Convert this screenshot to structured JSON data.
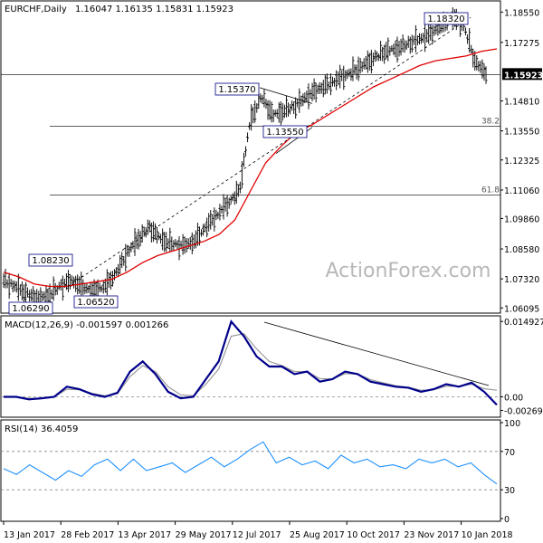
{
  "header": {
    "symbol": "EURCHF,Daily",
    "ohlc": "1.16047 1.16135 1.15831 1.15923"
  },
  "watermark": "ActionForex.com",
  "colors": {
    "price": "#111111",
    "ma": "#e00000",
    "macd": "#00008b",
    "signal": "#9a9a9a",
    "rsi": "#1e90ff",
    "grid": "#000000"
  },
  "price_panel": {
    "y_ticks": [
      "1.18550",
      "1.17275",
      "1.15923",
      "1.14810",
      "1.13550",
      "1.12325",
      "1.11060",
      "1.09860",
      "1.08580",
      "1.07320",
      "1.06095"
    ],
    "current_price_label": "1.15923",
    "annotations": [
      {
        "label": "1.18320"
      },
      {
        "label": "1.15370"
      },
      {
        "label": "1.13550"
      },
      {
        "label": "1.08230"
      },
      {
        "label": "1.06520"
      },
      {
        "label": "1.06290"
      }
    ],
    "fib_levels": [
      {
        "label": "38.2",
        "value": 1.1375
      },
      {
        "label": "61.8",
        "value": 1.1085
      }
    ]
  },
  "macd_panel": {
    "label": "MACD(12,26,9) -0.001597 0.001266",
    "y_ticks": [
      "0.014927",
      "0.00",
      "-0.002696"
    ]
  },
  "rsi_panel": {
    "label": "RSI(14) 36.4059",
    "y_ticks": [
      "100",
      "70",
      "30",
      "0"
    ]
  },
  "x_axis": {
    "labels": [
      "13 Jan 2017",
      "28 Feb 2017",
      "13 Apr 2017",
      "29 May 2017",
      "12 Jul 2017",
      "25 Aug 2017",
      "10 Oct 2017",
      "23 Nov 2017",
      "10 Jan 2018"
    ]
  },
  "chart_data": [
    {
      "type": "candlestick",
      "title": "EURCHF,Daily",
      "ylim": [
        1.0603,
        1.1883
      ],
      "x": [
        "13 Jan 2017",
        "28 Feb 2017",
        "13 Apr 2017",
        "29 May 2017",
        "12 Jul 2017",
        "25 Aug 2017",
        "10 Oct 2017",
        "23 Nov 2017",
        "10 Jan 2018"
      ],
      "close_path": [
        1.0725,
        1.07,
        1.0672,
        1.065,
        1.0663,
        1.07,
        1.0725,
        1.07,
        1.068,
        1.07,
        1.0755,
        1.084,
        1.09,
        1.095,
        1.09,
        1.088,
        1.087,
        1.089,
        1.095,
        1.1,
        1.105,
        1.11,
        1.14,
        1.15,
        1.142,
        1.144,
        1.146,
        1.15,
        1.153,
        1.155,
        1.158,
        1.16,
        1.163,
        1.166,
        1.169,
        1.17,
        1.172,
        1.174,
        1.176,
        1.18,
        1.1832,
        1.18,
        1.165,
        1.1592
      ],
      "ma_path": [
        1.076,
        1.074,
        1.071,
        1.07,
        1.07,
        1.071,
        1.072,
        1.073,
        1.076,
        1.08,
        1.083,
        1.085,
        1.087,
        1.089,
        1.092,
        1.098,
        1.11,
        1.122,
        1.129,
        1.135,
        1.138,
        1.142,
        1.146,
        1.15,
        1.154,
        1.157,
        1.16,
        1.163,
        1.165,
        1.166,
        1.167,
        1.169,
        1.17
      ],
      "current_price": 1.15923,
      "levels": [
        {
          "label": "1.18320",
          "value": 1.1832
        },
        {
          "label": "1.15370",
          "value": 1.1537
        },
        {
          "label": "1.13550",
          "value": 1.1355
        },
        {
          "label": "1.08230",
          "value": 1.0823
        },
        {
          "label": "1.06520",
          "value": 1.0652
        },
        {
          "label": "1.06290",
          "value": 1.0629
        }
      ],
      "fib": [
        {
          "label": "38.2",
          "value": 1.1375
        },
        {
          "label": "61.8",
          "value": 1.1085
        }
      ]
    },
    {
      "type": "line",
      "title": "MACD(12,26,9) -0.001597 0.001266",
      "ylim": [
        -0.0035,
        0.0155
      ],
      "series": [
        {
          "name": "MACD",
          "values": [
            0.0,
            0.0,
            -0.0005,
            -0.0003,
            0.0,
            0.002,
            0.0015,
            0.0005,
            0.0,
            0.0008,
            0.005,
            0.007,
            0.0045,
            0.001,
            -0.0003,
            0.0,
            0.0035,
            0.007,
            0.0149,
            0.012,
            0.008,
            0.006,
            0.006,
            0.0045,
            0.005,
            0.003,
            0.0035,
            0.005,
            0.0045,
            0.003,
            0.0025,
            0.002,
            0.0018,
            0.001,
            0.0015,
            0.0025,
            0.002,
            0.0028,
            0.001,
            -0.0016
          ]
        },
        {
          "name": "Signal",
          "values": [
            0.0,
            0.0,
            -0.0003,
            -0.0003,
            0.0,
            0.0015,
            0.0014,
            0.0007,
            0.0002,
            0.0006,
            0.004,
            0.0062,
            0.005,
            0.002,
            0.0004,
            0.0002,
            0.0025,
            0.0055,
            0.012,
            0.0125,
            0.0095,
            0.007,
            0.0062,
            0.005,
            0.005,
            0.0036,
            0.0035,
            0.0046,
            0.0045,
            0.0034,
            0.0028,
            0.0022,
            0.0019,
            0.0013,
            0.0014,
            0.0021,
            0.0021,
            0.0025,
            0.0016,
            0.0013
          ]
        }
      ]
    },
    {
      "type": "line",
      "title": "RSI(14) 36.4059",
      "ylim": [
        0,
        100
      ],
      "reference_lines": [
        70,
        30
      ],
      "series": [
        {
          "name": "RSI(14)",
          "values": [
            52,
            46,
            56,
            48,
            40,
            50,
            44,
            56,
            62,
            50,
            62,
            50,
            54,
            58,
            48,
            56,
            64,
            54,
            62,
            72,
            80,
            58,
            64,
            56,
            60,
            52,
            66,
            58,
            62,
            54,
            56,
            52,
            62,
            58,
            62,
            54,
            58,
            46,
            36
          ]
        }
      ]
    }
  ]
}
